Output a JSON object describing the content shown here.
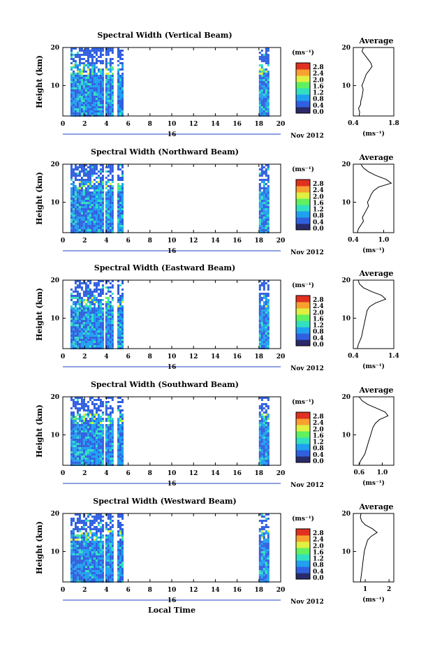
{
  "figure": {
    "bottom_xlabel": "Local Time",
    "colorbar_unit": "(ms⁻¹)",
    "colorbar_ticks": [
      "2.8",
      "2.4",
      "2.0",
      "1.6",
      "1.2",
      "0.8",
      "0.4",
      "0.0"
    ],
    "colormap": [
      "#2a2a6a",
      "#3060e0",
      "#20a0f0",
      "#30e0c0",
      "#60f060",
      "#e0f040",
      "#f8a030",
      "#e03020"
    ],
    "xticks": [
      "0",
      "2",
      "4",
      "6",
      "8",
      "10",
      "12",
      "14",
      "16",
      "18",
      "20"
    ],
    "date_label": "16",
    "month_label": "Nov 2012",
    "avg_title": "Average",
    "avg_xlabel": "(ms⁻¹)",
    "height_label": "Height (km)",
    "height_ticks": [
      "20",
      "10"
    ]
  },
  "chart_data": [
    {
      "type": "heatmap",
      "title": "Spectral Width (Vertical Beam)",
      "ylabel": "Height (km)",
      "xlabel": "",
      "xlim": [
        0,
        20
      ],
      "ylim": [
        2,
        20
      ],
      "data_blocks": [
        [
          0.7,
          3.6
        ],
        [
          3.9,
          4.6
        ],
        [
          5.0,
          5.5
        ],
        [
          18.0,
          18.9
        ]
      ],
      "average_profile": {
        "xticks": [
          "0.4",
          "1.8"
        ],
        "xlim": [
          0.4,
          1.8
        ],
        "height": [
          2,
          3,
          4,
          5,
          6,
          7,
          8,
          9,
          10,
          11,
          12,
          13,
          14,
          15,
          16,
          17,
          18,
          19,
          20
        ],
        "value": [
          0.6,
          0.62,
          0.58,
          0.65,
          0.66,
          0.7,
          0.72,
          0.74,
          0.7,
          0.75,
          0.8,
          0.85,
          0.95,
          1.05,
          1.0,
          0.9,
          0.8,
          0.7,
          0.75
        ]
      }
    },
    {
      "type": "heatmap",
      "title": "Spectral Width (Northward Beam)",
      "ylabel": "Height (km)",
      "xlabel": "",
      "xlim": [
        0,
        20
      ],
      "ylim": [
        2,
        20
      ],
      "data_blocks": [
        [
          0.7,
          3.6
        ],
        [
          3.9,
          4.6
        ],
        [
          5.0,
          5.5
        ],
        [
          18.0,
          18.9
        ]
      ],
      "average_profile": {
        "xticks": [
          "0.4",
          "1.0"
        ],
        "xlim": [
          0.4,
          1.2
        ],
        "height": [
          2,
          3,
          4,
          5,
          6,
          7,
          8,
          9,
          10,
          11,
          12,
          13,
          14,
          15,
          16,
          17,
          18,
          19,
          20
        ],
        "value": [
          0.48,
          0.5,
          0.55,
          0.6,
          0.58,
          0.62,
          0.66,
          0.7,
          0.68,
          0.72,
          0.75,
          0.8,
          0.9,
          1.15,
          1.05,
          0.85,
          0.7,
          0.6,
          0.55
        ]
      }
    },
    {
      "type": "heatmap",
      "title": "Spectral Width (Eastward Beam)",
      "ylabel": "Height (km)",
      "xlabel": "",
      "xlim": [
        0,
        20
      ],
      "ylim": [
        2,
        20
      ],
      "data_blocks": [
        [
          0.7,
          3.6
        ],
        [
          3.9,
          4.6
        ],
        [
          5.0,
          5.5
        ],
        [
          18.0,
          18.9
        ]
      ],
      "average_profile": {
        "xticks": [
          "0.4",
          "1.4"
        ],
        "xlim": [
          0.4,
          1.4
        ],
        "height": [
          2,
          3,
          4,
          5,
          6,
          7,
          8,
          9,
          10,
          11,
          12,
          13,
          14,
          15,
          16,
          17,
          18,
          19,
          20
        ],
        "value": [
          0.5,
          0.52,
          0.56,
          0.6,
          0.62,
          0.64,
          0.66,
          0.68,
          0.7,
          0.72,
          0.74,
          0.8,
          0.95,
          1.2,
          1.1,
          0.85,
          0.65,
          0.55,
          0.52
        ]
      }
    },
    {
      "type": "heatmap",
      "title": "Spectral Width (Southward Beam)",
      "ylabel": "Height (km)",
      "xlabel": "",
      "xlim": [
        0,
        20
      ],
      "ylim": [
        2,
        20
      ],
      "data_blocks": [
        [
          0.7,
          3.6
        ],
        [
          3.9,
          4.6
        ],
        [
          5.0,
          5.5
        ],
        [
          18.0,
          18.9
        ]
      ],
      "average_profile": {
        "xticks": [
          "0.6",
          "1.0"
        ],
        "xlim": [
          0.5,
          1.2
        ],
        "height": [
          2,
          3,
          4,
          5,
          6,
          7,
          8,
          9,
          10,
          11,
          12,
          13,
          14,
          15,
          16,
          17,
          18,
          19,
          20
        ],
        "value": [
          0.6,
          0.62,
          0.66,
          0.7,
          0.72,
          0.74,
          0.76,
          0.78,
          0.8,
          0.82,
          0.84,
          0.88,
          0.95,
          1.1,
          1.05,
          0.9,
          0.75,
          0.65,
          0.6
        ]
      }
    },
    {
      "type": "heatmap",
      "title": "Spectral Width (Westward Beam)",
      "ylabel": "Height (km)",
      "xlabel": "Local Time",
      "xlim": [
        0,
        20
      ],
      "ylim": [
        2,
        20
      ],
      "data_blocks": [
        [
          0.7,
          3.6
        ],
        [
          3.9,
          4.6
        ],
        [
          5.0,
          5.5
        ],
        [
          18.0,
          18.9
        ]
      ],
      "average_profile": {
        "xticks": [
          "1",
          "2"
        ],
        "xlim": [
          0.5,
          2.2
        ],
        "height": [
          2,
          3,
          4,
          5,
          6,
          7,
          8,
          9,
          10,
          11,
          12,
          13,
          14,
          15,
          16,
          17,
          18,
          19,
          20
        ],
        "value": [
          0.8,
          0.82,
          0.84,
          0.86,
          0.88,
          0.9,
          0.92,
          0.94,
          0.96,
          1.0,
          1.05,
          1.1,
          1.25,
          1.5,
          1.3,
          1.0,
          0.85,
          0.8,
          0.82
        ]
      }
    }
  ]
}
